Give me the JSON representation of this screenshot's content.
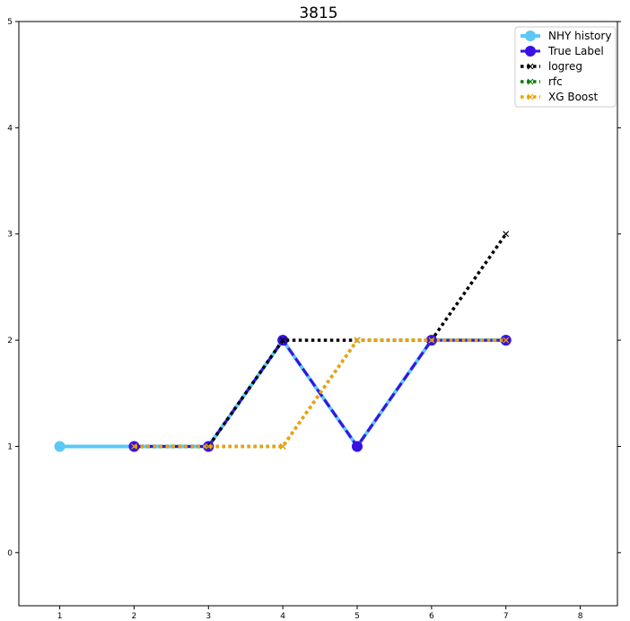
{
  "chart_data": {
    "type": "line",
    "title": "3815",
    "xlabel": "",
    "ylabel": "",
    "xlim": [
      0.45,
      8.5
    ],
    "ylim": [
      -0.5,
      5
    ],
    "x_ticks": [
      1,
      2,
      3,
      4,
      5,
      6,
      7,
      8
    ],
    "y_ticks": [
      0,
      1,
      2,
      3,
      4,
      5
    ],
    "legend_position": "top-right",
    "grid": false,
    "series": [
      {
        "name": "NHY history",
        "x": [
          1,
          2,
          3,
          4,
          5,
          6,
          7
        ],
        "y": [
          1,
          1,
          1,
          2,
          1,
          2,
          2
        ],
        "color": "#5bc8f5",
        "style": "solid",
        "marker": "circle"
      },
      {
        "name": "True Label",
        "x": [
          2,
          3,
          4,
          5,
          6,
          7
        ],
        "y": [
          1,
          1,
          2,
          1,
          2,
          2
        ],
        "color": "#3a10e5",
        "style": "dashed",
        "marker": "circle"
      },
      {
        "name": "logreg",
        "x": [
          2,
          3,
          4,
          5,
          6,
          7
        ],
        "y": [
          1,
          1,
          2,
          2,
          2,
          3
        ],
        "color": "#000000",
        "style": "dotted",
        "marker": "x"
      },
      {
        "name": "rfc",
        "x": [
          2,
          3,
          4,
          5,
          6,
          7
        ],
        "y": [
          1,
          1,
          1,
          2,
          2,
          2
        ],
        "color": "#008000",
        "style": "dotted",
        "marker": "x"
      },
      {
        "name": "XG Boost",
        "x": [
          2,
          3,
          4,
          5,
          6,
          7
        ],
        "y": [
          1,
          1,
          1,
          2,
          2,
          2
        ],
        "color": "#f5a000",
        "style": "dotted",
        "marker": "x"
      }
    ]
  }
}
